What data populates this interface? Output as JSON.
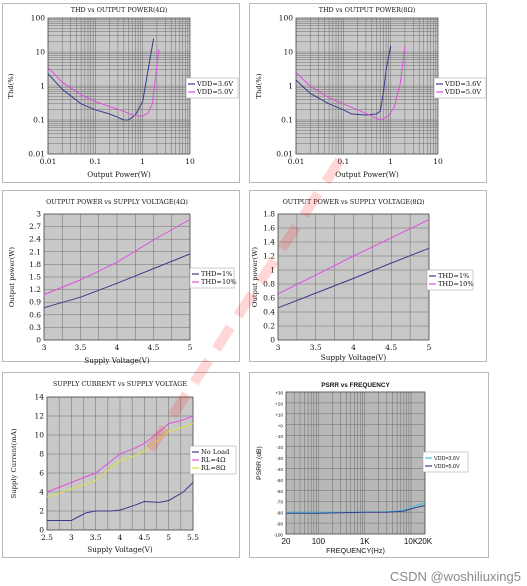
{
  "watermark": "CSDN @woshiliuxing5",
  "colors": {
    "blue": "#3a3a8c",
    "magenta": "#e050e0",
    "yellow": "#e0e040",
    "cyan": "#40c0d0",
    "plot_bg": "#c8c8c8",
    "psrr_bg": "#b8b8b8",
    "grid": "#6e6e6e"
  },
  "chart_data": [
    {
      "id": "c1",
      "type": "line",
      "scale": "log",
      "title": "THD vs OUTPUT POWER(4Ω)",
      "xlabel": "Output Power(W)",
      "ylabel": "Thd(%)",
      "xlim": [
        0.01,
        10
      ],
      "ylim": [
        0.01,
        100
      ],
      "xticks": [
        "0.01",
        "0.1",
        "1",
        "10"
      ],
      "yticks": [
        "0.01",
        "0.1",
        "1",
        "10",
        "100"
      ],
      "legend_position": "right",
      "series": [
        {
          "name": "VDD=3.6V",
          "color": "blue",
          "x": [
            0.01,
            0.02,
            0.05,
            0.1,
            0.2,
            0.3,
            0.4,
            0.5,
            0.7,
            1.0,
            1.3,
            1.7
          ],
          "y": [
            2.3,
            0.8,
            0.3,
            0.2,
            0.15,
            0.12,
            0.1,
            0.1,
            0.14,
            0.35,
            3,
            25
          ]
        },
        {
          "name": "VDD=5.0V",
          "color": "magenta",
          "x": [
            0.01,
            0.02,
            0.05,
            0.1,
            0.2,
            0.4,
            0.6,
            0.8,
            1.0,
            1.3,
            1.6,
            2.2
          ],
          "y": [
            3.5,
            1.3,
            0.55,
            0.35,
            0.25,
            0.18,
            0.14,
            0.13,
            0.13,
            0.16,
            0.3,
            12
          ]
        }
      ]
    },
    {
      "id": "c2",
      "type": "line",
      "scale": "log",
      "title": "THD vs OUTPUT POWER(8Ω)",
      "xlabel": "Output Power(W)",
      "ylabel": "Thd(%)",
      "xlim": [
        0.01,
        10
      ],
      "ylim": [
        0.01,
        100
      ],
      "xticks": [
        "0.01",
        "0.1",
        "1",
        "10"
      ],
      "yticks": [
        "0.01",
        "0.1",
        "1",
        "10",
        "100"
      ],
      "legend_position": "right",
      "series": [
        {
          "name": "VDD=3.6V",
          "color": "blue",
          "x": [
            0.01,
            0.02,
            0.05,
            0.1,
            0.15,
            0.3,
            0.5,
            0.6,
            0.7,
            0.8,
            1.0
          ],
          "y": [
            1.5,
            0.6,
            0.3,
            0.2,
            0.15,
            0.14,
            0.15,
            0.18,
            0.6,
            3,
            15
          ]
        },
        {
          "name": "VDD=5.0V",
          "color": "magenta",
          "x": [
            0.01,
            0.02,
            0.05,
            0.1,
            0.2,
            0.4,
            0.6,
            0.9,
            1.2,
            1.6,
            2.0
          ],
          "y": [
            2.5,
            1.0,
            0.45,
            0.3,
            0.2,
            0.13,
            0.1,
            0.13,
            0.25,
            1.2,
            15
          ]
        }
      ]
    },
    {
      "id": "c3",
      "type": "line",
      "title": "OUTPUT POWER vs SUPPLY VOLTAGE(4Ω)",
      "xlabel": "Supply Voltage(V)",
      "ylabel": "Output power(W)",
      "xlim": [
        3,
        5
      ],
      "ylim": [
        0,
        3
      ],
      "xticks": [
        "3",
        "3.5",
        "4",
        "4.5",
        "5"
      ],
      "yticks": [
        "0",
        "0.3",
        "0.6",
        "0.9",
        "1.2",
        "1.5",
        "1.8",
        "2.1",
        "2.4",
        "2.7",
        "3"
      ],
      "legend_position": "right",
      "series": [
        {
          "name": "THD=1%",
          "color": "blue",
          "x": [
            3,
            3.5,
            4,
            4.5,
            5
          ],
          "y": [
            0.77,
            1.02,
            1.35,
            1.7,
            2.05
          ]
        },
        {
          "name": "THD=10%",
          "color": "magenta",
          "x": [
            3,
            3.5,
            4,
            4.5,
            5
          ],
          "y": [
            1.08,
            1.43,
            1.85,
            2.38,
            2.87
          ]
        }
      ]
    },
    {
      "id": "c4",
      "type": "line",
      "title": "OUTPUT POWER vs SUPPLY VOLTAGE(8Ω)",
      "xlabel": "Supply Voltage(V)",
      "ylabel": "Output power(W)",
      "xlim": [
        3,
        5
      ],
      "ylim": [
        0,
        1.8
      ],
      "xticks": [
        "3",
        "3.5",
        "4",
        "4.5",
        "5"
      ],
      "yticks": [
        "0",
        "0.2",
        "0.4",
        "0.6",
        "0.8",
        "1",
        "1.2",
        "1.4",
        "1.6",
        "1.8"
      ],
      "legend_position": "right",
      "series": [
        {
          "name": "THD=1%",
          "color": "blue",
          "x": [
            3,
            3.5,
            4,
            4.5,
            5
          ],
          "y": [
            0.46,
            0.67,
            0.88,
            1.1,
            1.31
          ]
        },
        {
          "name": "THD=10%",
          "color": "magenta",
          "x": [
            3,
            3.5,
            4,
            4.5,
            5
          ],
          "y": [
            0.66,
            0.93,
            1.2,
            1.46,
            1.72
          ]
        }
      ]
    },
    {
      "id": "c5",
      "type": "line",
      "title": "SUPPLY CURRENT vs SUPPLY VOLTAGE",
      "xlabel": "Supply Voltage(V)",
      "ylabel": "Supply Current(mA)",
      "xlim": [
        2.5,
        5.5
      ],
      "ylim": [
        0,
        14
      ],
      "xticks": [
        "2.5",
        "3",
        "3.5",
        "4",
        "4.5",
        "5",
        "5.5"
      ],
      "yticks": [
        "0",
        "2",
        "4",
        "6",
        "8",
        "10",
        "12",
        "14"
      ],
      "legend_position": "right",
      "series": [
        {
          "name": "No Load",
          "color": "blue",
          "x": [
            2.5,
            2.7,
            3.0,
            3.3,
            3.5,
            3.8,
            4.0,
            4.3,
            4.5,
            4.8,
            5.0,
            5.3,
            5.5
          ],
          "y": [
            1,
            1,
            1,
            1.8,
            2,
            2,
            2.1,
            2.6,
            3,
            2.9,
            3.1,
            4,
            5
          ]
        },
        {
          "name": "RL=4Ω",
          "color": "magenta",
          "x": [
            2.5,
            3.0,
            3.5,
            3.8,
            4.0,
            4.3,
            4.5,
            4.8,
            5.0,
            5.3,
            5.5
          ],
          "y": [
            4,
            5,
            6,
            7.2,
            8,
            8.6,
            9.1,
            10.3,
            11.2,
            11.6,
            12
          ]
        },
        {
          "name": "RL=8Ω",
          "color": "yellow",
          "x": [
            2.5,
            3.0,
            3.5,
            3.8,
            4.0,
            4.3,
            4.5,
            4.8,
            5.0,
            5.3,
            5.5
          ],
          "y": [
            3.5,
            4.3,
            5.2,
            6.5,
            7.3,
            7.8,
            8.3,
            9.5,
            10.4,
            10.8,
            11.2
          ]
        }
      ]
    },
    {
      "id": "c6",
      "type": "line",
      "scale": "logx",
      "title": "PSRR vs FREQUENCY",
      "xlabel": "FREQUENCY(Hz)",
      "ylabel": "PSRR (dB)",
      "xlim": [
        20,
        20000
      ],
      "ylim": [
        -100,
        30
      ],
      "xticks": [
        "20",
        "100",
        "1K",
        "10K",
        "20K"
      ],
      "yticks": [
        "-100",
        "-90",
        "-80",
        "-70",
        "-60",
        "-50",
        "-40",
        "-30",
        "-20",
        "-10",
        "+0",
        "+10",
        "+20",
        "+30"
      ],
      "legend_position": "right",
      "series": [
        {
          "name": "VDD=3.6V",
          "color": "cyan",
          "x": [
            20,
            50,
            100,
            300,
            1000,
            3000,
            5000,
            7000,
            10000,
            15000,
            20000
          ],
          "y": [
            -80,
            -80,
            -80,
            -80,
            -80,
            -79.5,
            -79,
            -78,
            -76,
            -73,
            -72
          ]
        },
        {
          "name": "VDD=5.0V",
          "color": "blue",
          "x": [
            20,
            50,
            100,
            300,
            1000,
            3000,
            5000,
            7000,
            10000,
            15000,
            20000
          ],
          "y": [
            -81,
            -81,
            -81,
            -80.5,
            -80,
            -80,
            -79.5,
            -79,
            -77,
            -75,
            -74
          ]
        }
      ]
    }
  ]
}
